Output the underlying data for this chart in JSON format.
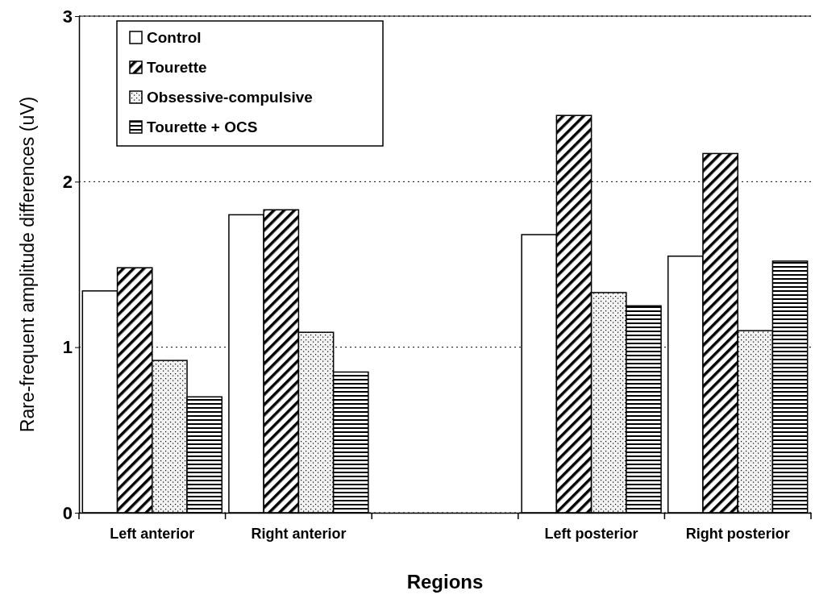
{
  "chart_data": {
    "type": "bar",
    "xlabel": "Regions",
    "ylabel": "Rare-frequent amplitude differences (uV)",
    "categories": [
      "Left anterior",
      "Right anterior",
      null,
      "Left posterior",
      "Right posterior"
    ],
    "series": [
      {
        "name": "Control",
        "color": "#ffffff",
        "values": [
          1.34,
          1.8,
          null,
          1.68,
          1.55
        ]
      },
      {
        "name": "Tourette",
        "color": "#000000",
        "values": [
          1.48,
          1.83,
          null,
          2.4,
          2.17
        ]
      },
      {
        "name": "Obsessive-compulsive",
        "color": "#000000",
        "values": [
          0.92,
          1.09,
          null,
          1.33,
          1.1
        ]
      },
      {
        "name": "Tourette + OCS",
        "color": "#000000",
        "values": [
          0.7,
          0.85,
          null,
          1.25,
          1.52
        ]
      }
    ],
    "ylim": [
      0,
      3
    ],
    "yticks": [
      0,
      1,
      2,
      3
    ],
    "grid": "y",
    "legend": "top left"
  }
}
